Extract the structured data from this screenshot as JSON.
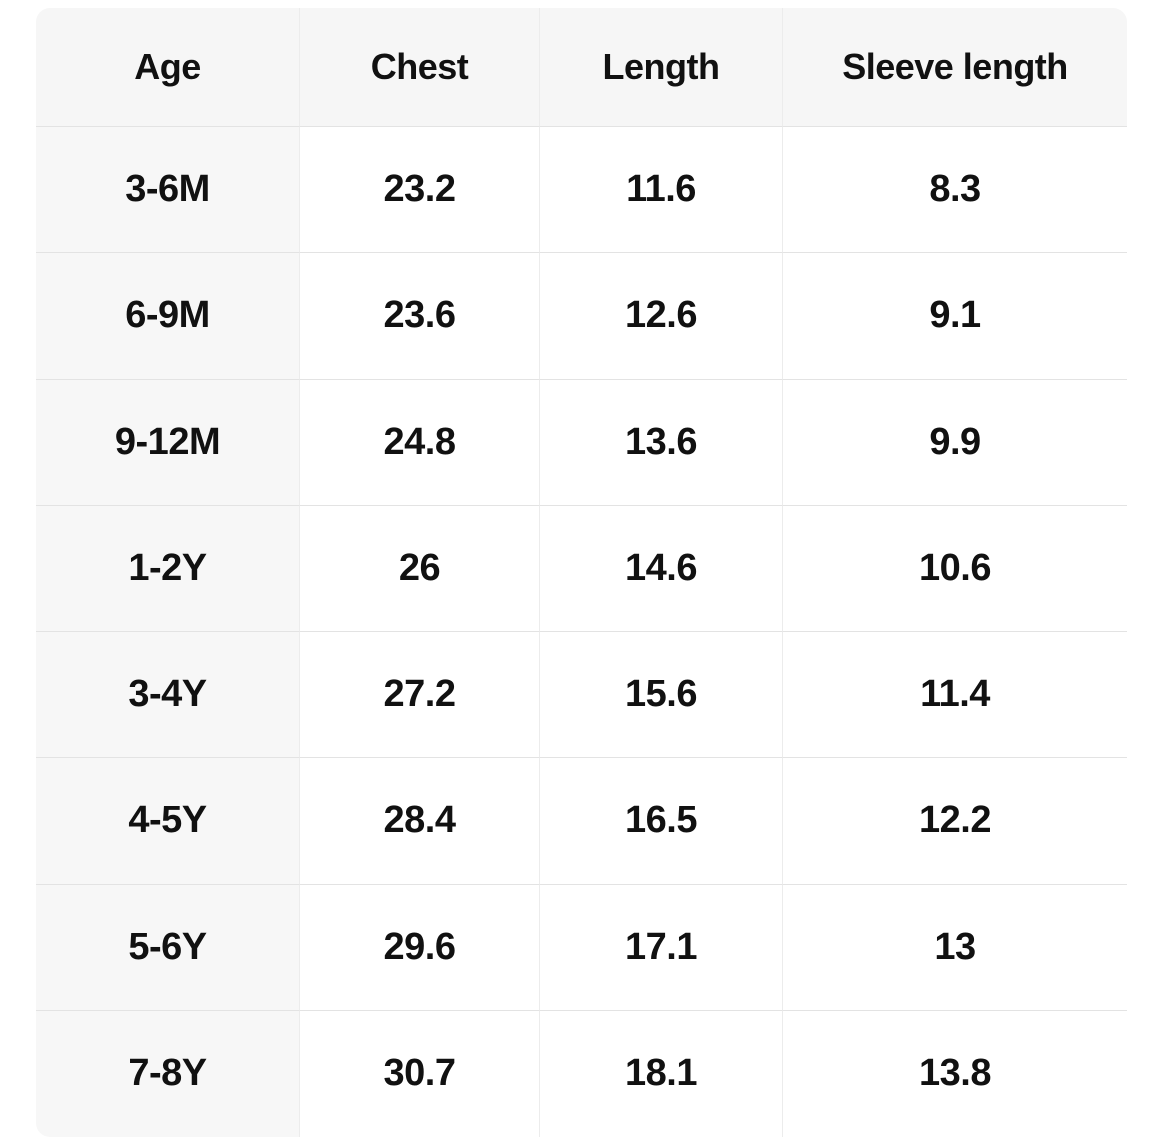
{
  "table": {
    "headers": [
      "Age",
      "Chest",
      "Length",
      "Sleeve length"
    ],
    "rows": [
      [
        "3-6M",
        "23.2",
        "11.6",
        "8.3"
      ],
      [
        "6-9M",
        "23.6",
        "12.6",
        "9.1"
      ],
      [
        "9-12M",
        "24.8",
        "13.6",
        "9.9"
      ],
      [
        "1-2Y",
        "26",
        "14.6",
        "10.6"
      ],
      [
        "3-4Y",
        "27.2",
        "15.6",
        "11.4"
      ],
      [
        "4-5Y",
        "28.4",
        "16.5",
        "12.2"
      ],
      [
        "5-6Y",
        "29.6",
        "17.1",
        "13"
      ],
      [
        "7-8Y",
        "30.7",
        "18.1",
        "13.8"
      ]
    ]
  },
  "colors": {
    "header_bg": "#f6f6f6",
    "row_label_bg": "#f7f7f7",
    "horizontal_border": "#e3e3e3",
    "vertical_border": "#ececec",
    "text": "#111111",
    "page_bg": "#ffffff"
  }
}
